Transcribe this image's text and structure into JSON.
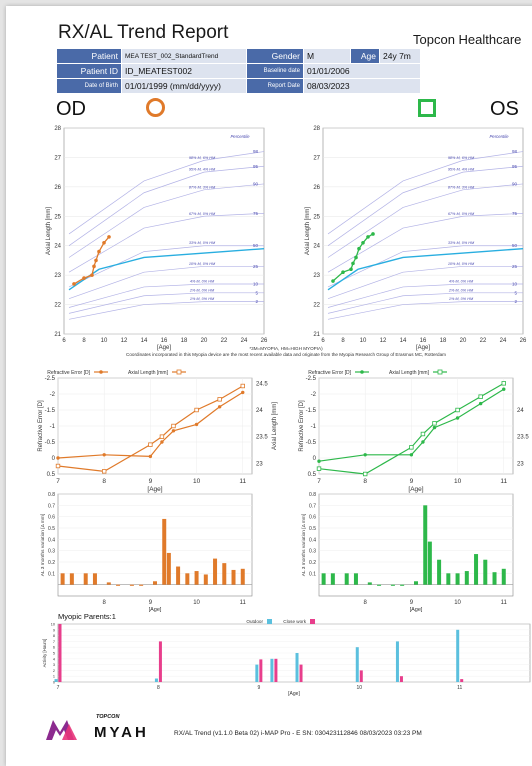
{
  "header": {
    "title": "RX/AL Trend Report",
    "company": "Topcon Healthcare"
  },
  "patient_info": {
    "patient_label": "Patient",
    "patient_value": "MEA TEST_002_StandardTrend",
    "gender_label": "Gender",
    "gender_value": "M",
    "age_label": "Age",
    "age_value": "24y 7m",
    "patient_id_label": "Patient ID",
    "patient_id_value": "ID_MEATEST002",
    "baseline_label": "Baseline date",
    "baseline_value": "01/01/2006",
    "dob_label": "Date of Birth",
    "dob_value": "01/01/1999 (mm/dd/yyyy)",
    "report_label": "Report Date",
    "report_value": "08/03/2023"
  },
  "eyes": {
    "od": "OD",
    "os": "OS",
    "od_color": "#e07a2a",
    "os_color": "#2db84a"
  },
  "note": {
    "line1": "*3M=MYOPIA, HM=HIGH MYOPIA)",
    "line2": "Coordinates incorporated in this Myopia device are the most recent available data and originate from the Myopia Research Group of Erasmus MC, Rotterdam"
  },
  "myopic_parents": "Myopic Parents:1",
  "footer": {
    "topcon": "TOPCON",
    "brand": "MYAH",
    "version": "RX/AL Trend (v1.1.0 Beta 02) i-MAP Pro - E SN: 030423112846 08/03/2023 03:23 PM"
  },
  "chart_data": [
    {
      "id": "od-growth",
      "type": "line",
      "ylabel": "Axial Length [mm]",
      "xlabel": "[Age]",
      "xlim": [
        6,
        26
      ],
      "ylim": [
        21,
        28
      ],
      "xticks": [
        6,
        8,
        10,
        12,
        14,
        16,
        18,
        20,
        22,
        24,
        26
      ],
      "yticks": [
        21,
        22,
        23,
        24,
        25,
        26,
        27,
        28
      ],
      "percentile_label": "Percentile",
      "percentiles": [
        {
          "label": "98",
          "ann": "98% M, 6% HM",
          "points": [
            [
              6.5,
              24.4
            ],
            [
              14,
              26.2
            ],
            [
              20,
              26.9
            ],
            [
              26,
              27.2
            ]
          ]
        },
        {
          "label": "95",
          "ann": "95% M, 4% HM",
          "points": [
            [
              6.5,
              24.0
            ],
            [
              14,
              25.8
            ],
            [
              20,
              26.5
            ],
            [
              26,
              26.7
            ]
          ]
        },
        {
          "label": "90",
          "ann": "87% M, 3% HM",
          "points": [
            [
              6.5,
              23.6
            ],
            [
              14,
              25.3
            ],
            [
              20,
              25.9
            ],
            [
              26,
              26.1
            ]
          ]
        },
        {
          "label": "75",
          "ann": "67% M, 0% HM",
          "points": [
            [
              6.5,
              23.1
            ],
            [
              14,
              24.6
            ],
            [
              20,
              25.0
            ],
            [
              26,
              25.1
            ]
          ]
        },
        {
          "label": "50",
          "ann": "33% M, 0% HM",
          "points": [
            [
              6.5,
              22.6
            ],
            [
              14,
              23.8
            ],
            [
              20,
              24.0
            ],
            [
              26,
              24.0
            ]
          ]
        },
        {
          "label": "25",
          "ann": "10% M, 0% HM",
          "points": [
            [
              6.5,
              22.2
            ],
            [
              14,
              23.1
            ],
            [
              20,
              23.3
            ],
            [
              26,
              23.3
            ]
          ]
        },
        {
          "label": "10",
          "ann": "4% M, 0% HM",
          "points": [
            [
              6.5,
              21.9
            ],
            [
              14,
              22.6
            ],
            [
              20,
              22.7
            ],
            [
              26,
              22.7
            ]
          ]
        },
        {
          "label": "5",
          "ann": "2% M, 0% HM",
          "points": [
            [
              6.5,
              21.7
            ],
            [
              14,
              22.3
            ],
            [
              20,
              22.4
            ],
            [
              26,
              22.4
            ]
          ]
        },
        {
          "label": "2",
          "ann": "1% M, 0% HM",
          "points": [
            [
              6.5,
              21.5
            ],
            [
              14,
              22.0
            ],
            [
              20,
              22.1
            ],
            [
              26,
              22.1
            ]
          ]
        }
      ],
      "trend": [
        [
          6.5,
          22.5
        ],
        [
          9.5,
          23.2
        ],
        [
          14,
          23.6
        ],
        [
          26,
          23.9
        ]
      ],
      "measured": [
        [
          7,
          22.7
        ],
        [
          8,
          22.9
        ],
        [
          8.8,
          23.0
        ],
        [
          9,
          23.3
        ],
        [
          9.2,
          23.5
        ],
        [
          9.5,
          23.8
        ],
        [
          10,
          24.1
        ],
        [
          10.5,
          24.3
        ]
      ]
    },
    {
      "id": "os-growth",
      "type": "line",
      "ylabel": "Axial Length [mm]",
      "xlabel": "[Age]",
      "xlim": [
        6,
        26
      ],
      "ylim": [
        21,
        28
      ],
      "xticks": [
        6,
        8,
        10,
        12,
        14,
        16,
        18,
        20,
        22,
        24,
        26
      ],
      "yticks": [
        21,
        22,
        23,
        24,
        25,
        26,
        27,
        28
      ],
      "percentile_label": "Percentile",
      "percentiles": [
        {
          "label": "98",
          "ann": "98% M, 6% HM",
          "points": [
            [
              6.5,
              24.4
            ],
            [
              14,
              26.2
            ],
            [
              20,
              26.9
            ],
            [
              26,
              27.2
            ]
          ]
        },
        {
          "label": "95",
          "ann": "95% M, 4% HM",
          "points": [
            [
              6.5,
              24.0
            ],
            [
              14,
              25.8
            ],
            [
              20,
              26.5
            ],
            [
              26,
              26.7
            ]
          ]
        },
        {
          "label": "90",
          "ann": "87% M, 3% HM",
          "points": [
            [
              6.5,
              23.6
            ],
            [
              14,
              25.3
            ],
            [
              20,
              25.9
            ],
            [
              26,
              26.1
            ]
          ]
        },
        {
          "label": "75",
          "ann": "67% M, 0% HM",
          "points": [
            [
              6.5,
              23.1
            ],
            [
              14,
              24.6
            ],
            [
              20,
              25.0
            ],
            [
              26,
              25.1
            ]
          ]
        },
        {
          "label": "50",
          "ann": "33% M, 0% HM",
          "points": [
            [
              6.5,
              22.6
            ],
            [
              14,
              23.8
            ],
            [
              20,
              24.0
            ],
            [
              26,
              24.0
            ]
          ]
        },
        {
          "label": "25",
          "ann": "10% M, 0% HM",
          "points": [
            [
              6.5,
              22.2
            ],
            [
              14,
              23.1
            ],
            [
              20,
              23.3
            ],
            [
              26,
              23.3
            ]
          ]
        },
        {
          "label": "10",
          "ann": "4% M, 0% HM",
          "points": [
            [
              6.5,
              21.9
            ],
            [
              14,
              22.6
            ],
            [
              20,
              22.7
            ],
            [
              26,
              22.7
            ]
          ]
        },
        {
          "label": "5",
          "ann": "2% M, 0% HM",
          "points": [
            [
              6.5,
              21.7
            ],
            [
              14,
              22.3
            ],
            [
              20,
              22.4
            ],
            [
              26,
              22.4
            ]
          ]
        },
        {
          "label": "2",
          "ann": "1% M, 0% HM",
          "points": [
            [
              6.5,
              21.5
            ],
            [
              14,
              22.0
            ],
            [
              20,
              22.1
            ],
            [
              26,
              22.1
            ]
          ]
        }
      ],
      "trend": [
        [
          6.5,
          22.5
        ],
        [
          9.5,
          23.2
        ],
        [
          14,
          23.6
        ],
        [
          26,
          23.9
        ]
      ],
      "measured": [
        [
          7,
          22.8
        ],
        [
          8,
          23.1
        ],
        [
          8.8,
          23.2
        ],
        [
          9,
          23.4
        ],
        [
          9.3,
          23.6
        ],
        [
          9.6,
          23.9
        ],
        [
          10,
          24.1
        ],
        [
          10.5,
          24.3
        ],
        [
          11,
          24.4
        ]
      ]
    },
    {
      "id": "od-rx",
      "type": "line",
      "xlabel": "[Age]",
      "ylabel_left": "Refractive Error [D]",
      "ylabel_right": "Axial Length [mm]",
      "legend": [
        "Refractive Error [D]",
        "Axial Length [mm]"
      ],
      "xlim": [
        7,
        11.2
      ],
      "xticks": [
        7,
        8,
        9,
        10,
        11
      ],
      "ylim_left": [
        -2.5,
        0.5
      ],
      "yticks_left": [
        -2.5,
        -2,
        -1.5,
        -1,
        -0.5,
        0,
        0.5
      ],
      "ylim_right": [
        22.8,
        24.6
      ],
      "yticks_right": [
        23,
        23.5,
        24,
        24.5
      ],
      "refractive": [
        [
          7,
          0.0
        ],
        [
          8,
          -0.1
        ],
        [
          9,
          -0.05
        ],
        [
          9.25,
          -0.5
        ],
        [
          9.5,
          -0.85
        ],
        [
          10,
          -1.05
        ],
        [
          10.5,
          -1.6
        ],
        [
          11,
          -2.05
        ]
      ],
      "axial": [
        [
          7,
          22.95
        ],
        [
          8,
          22.85
        ],
        [
          9,
          23.35
        ],
        [
          9.25,
          23.5
        ],
        [
          9.5,
          23.7
        ],
        [
          10,
          24.0
        ],
        [
          10.5,
          24.2
        ],
        [
          11,
          24.45
        ]
      ]
    },
    {
      "id": "os-rx",
      "type": "line",
      "xlabel": "[Age]",
      "ylabel_left": "Refractive Error [D]",
      "ylabel_right": "Axial Length [mm]",
      "legend": [
        "Refractive Error [D]",
        "Axial Length [mm]"
      ],
      "xlim": [
        7,
        11.2
      ],
      "xticks": [
        7,
        8,
        9,
        10,
        11
      ],
      "ylim_left": [
        -2.5,
        0.5
      ],
      "yticks_left": [
        -2.5,
        -2,
        -1.5,
        -1,
        -0.5,
        0,
        0.5
      ],
      "ylim_right": [
        22.8,
        24.6
      ],
      "yticks_right": [
        23,
        23.5,
        24
      ],
      "refractive": [
        [
          7,
          0.1
        ],
        [
          8,
          -0.1
        ],
        [
          9,
          -0.1
        ],
        [
          9.25,
          -0.5
        ],
        [
          9.5,
          -0.95
        ],
        [
          10,
          -1.25
        ],
        [
          10.5,
          -1.7
        ],
        [
          11,
          -2.15
        ]
      ],
      "axial": [
        [
          7,
          22.9
        ],
        [
          8,
          22.8
        ],
        [
          9,
          23.3
        ],
        [
          9.25,
          23.55
        ],
        [
          9.5,
          23.75
        ],
        [
          10,
          24.0
        ],
        [
          10.5,
          24.25
        ],
        [
          11,
          24.5
        ]
      ]
    },
    {
      "id": "od-delta",
      "type": "bar",
      "ylabel": "AL 3 months variation [Δ mm]",
      "xlabel": "[Age]",
      "xlim": [
        7,
        11.2
      ],
      "xticks": [
        8,
        9,
        10,
        11
      ],
      "ylim": [
        -0.1,
        0.8
      ],
      "yticks": [
        0,
        0.1,
        0.2,
        0.3,
        0.4,
        0.5,
        0.6,
        0.7,
        0.8
      ],
      "x": [
        7.1,
        7.3,
        7.6,
        7.8,
        8.1,
        8.3,
        8.6,
        8.8,
        9.1,
        9.3,
        9.4,
        9.6,
        9.8,
        10.0,
        10.2,
        10.4,
        10.6,
        10.8,
        11.0
      ],
      "values": [
        0.1,
        0.1,
        0.1,
        0.1,
        0.02,
        -0.01,
        -0.01,
        -0.01,
        0.03,
        0.58,
        0.28,
        0.16,
        0.1,
        0.12,
        0.09,
        0.23,
        0.19,
        0.13,
        0.14
      ]
    },
    {
      "id": "os-delta",
      "type": "bar",
      "ylabel": "AL 3 months variation [Δ mm]",
      "xlabel": "[Age]",
      "xlim": [
        7,
        11.2
      ],
      "xticks": [
        8,
        9,
        10,
        11
      ],
      "ylim": [
        -0.1,
        0.8
      ],
      "yticks": [
        0,
        0.1,
        0.2,
        0.3,
        0.4,
        0.5,
        0.6,
        0.7,
        0.8
      ],
      "x": [
        7.1,
        7.3,
        7.6,
        7.8,
        8.1,
        8.3,
        8.6,
        8.8,
        9.1,
        9.3,
        9.4,
        9.6,
        9.8,
        10.0,
        10.2,
        10.4,
        10.6,
        10.8,
        11.0
      ],
      "values": [
        0.1,
        0.1,
        0.1,
        0.1,
        0.02,
        -0.01,
        -0.01,
        -0.01,
        0.03,
        0.7,
        0.38,
        0.22,
        0.1,
        0.1,
        0.12,
        0.27,
        0.22,
        0.11,
        0.14
      ]
    },
    {
      "id": "activity",
      "type": "bar",
      "ylabel": "Activity [Hours]",
      "xlabel": "[Age]",
      "legend": [
        "Outdoor",
        "Close work"
      ],
      "colors": [
        "#5bc0de",
        "#e83e8c"
      ],
      "xlim": [
        7,
        11.7
      ],
      "xticks": [
        7,
        8,
        9,
        10,
        11
      ],
      "ylim": [
        0,
        10
      ],
      "yticks": [
        0,
        1,
        2,
        3,
        4,
        5,
        6,
        7,
        8,
        9,
        10
      ],
      "groups": [
        {
          "x": 7.0,
          "outdoor": 0.5,
          "close": 10.0
        },
        {
          "x": 8.0,
          "outdoor": 0.6,
          "close": 7.0
        },
        {
          "x": 9.0,
          "outdoor": 3.0,
          "close": 3.9
        },
        {
          "x": 9.15,
          "outdoor": 4.0,
          "close": 4.0
        },
        {
          "x": 9.4,
          "outdoor": 5.0,
          "close": 3.0
        },
        {
          "x": 10.0,
          "outdoor": 6.0,
          "close": 2.0
        },
        {
          "x": 10.4,
          "outdoor": 7.0,
          "close": 1.0
        },
        {
          "x": 11.0,
          "outdoor": 9.0,
          "close": 0.5
        }
      ]
    }
  ]
}
